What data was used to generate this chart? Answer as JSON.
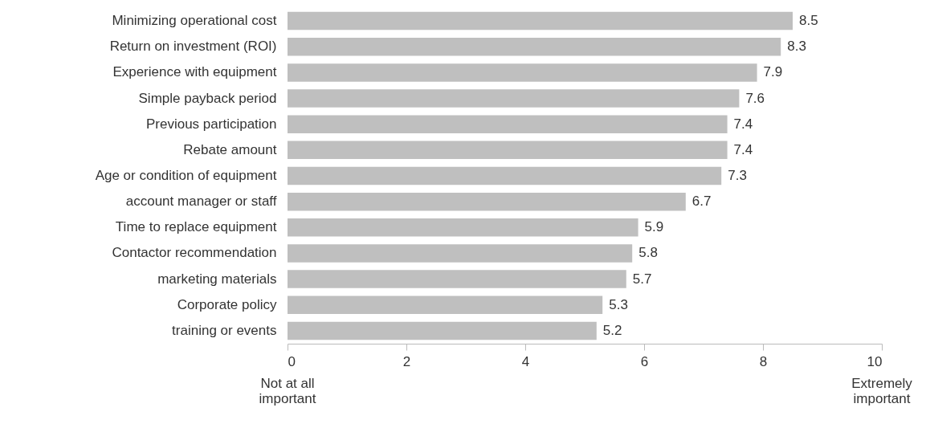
{
  "chart_data": {
    "type": "bar",
    "orientation": "horizontal",
    "categories": [
      "Minimizing operational cost",
      "Return on investment (ROI)",
      "Experience with equipment",
      "Simple payback period",
      "Previous participation",
      "Rebate amount",
      "Age or condition of equipment",
      "account manager or staff",
      "Time to replace equipment",
      "Contactor recommendation",
      "marketing materials",
      "Corporate policy",
      "training or events"
    ],
    "values": [
      8.5,
      8.3,
      7.9,
      7.6,
      7.4,
      7.4,
      7.3,
      6.7,
      5.9,
      5.8,
      5.7,
      5.3,
      5.2
    ],
    "color": "#bfbfbf",
    "data_labels": true,
    "xlim": [
      0,
      10
    ],
    "xticks": [
      0,
      2,
      4,
      6,
      8,
      10
    ],
    "grid": false,
    "annotations": [
      "Not at all\nimportant",
      "Extremely\nimportant"
    ]
  }
}
